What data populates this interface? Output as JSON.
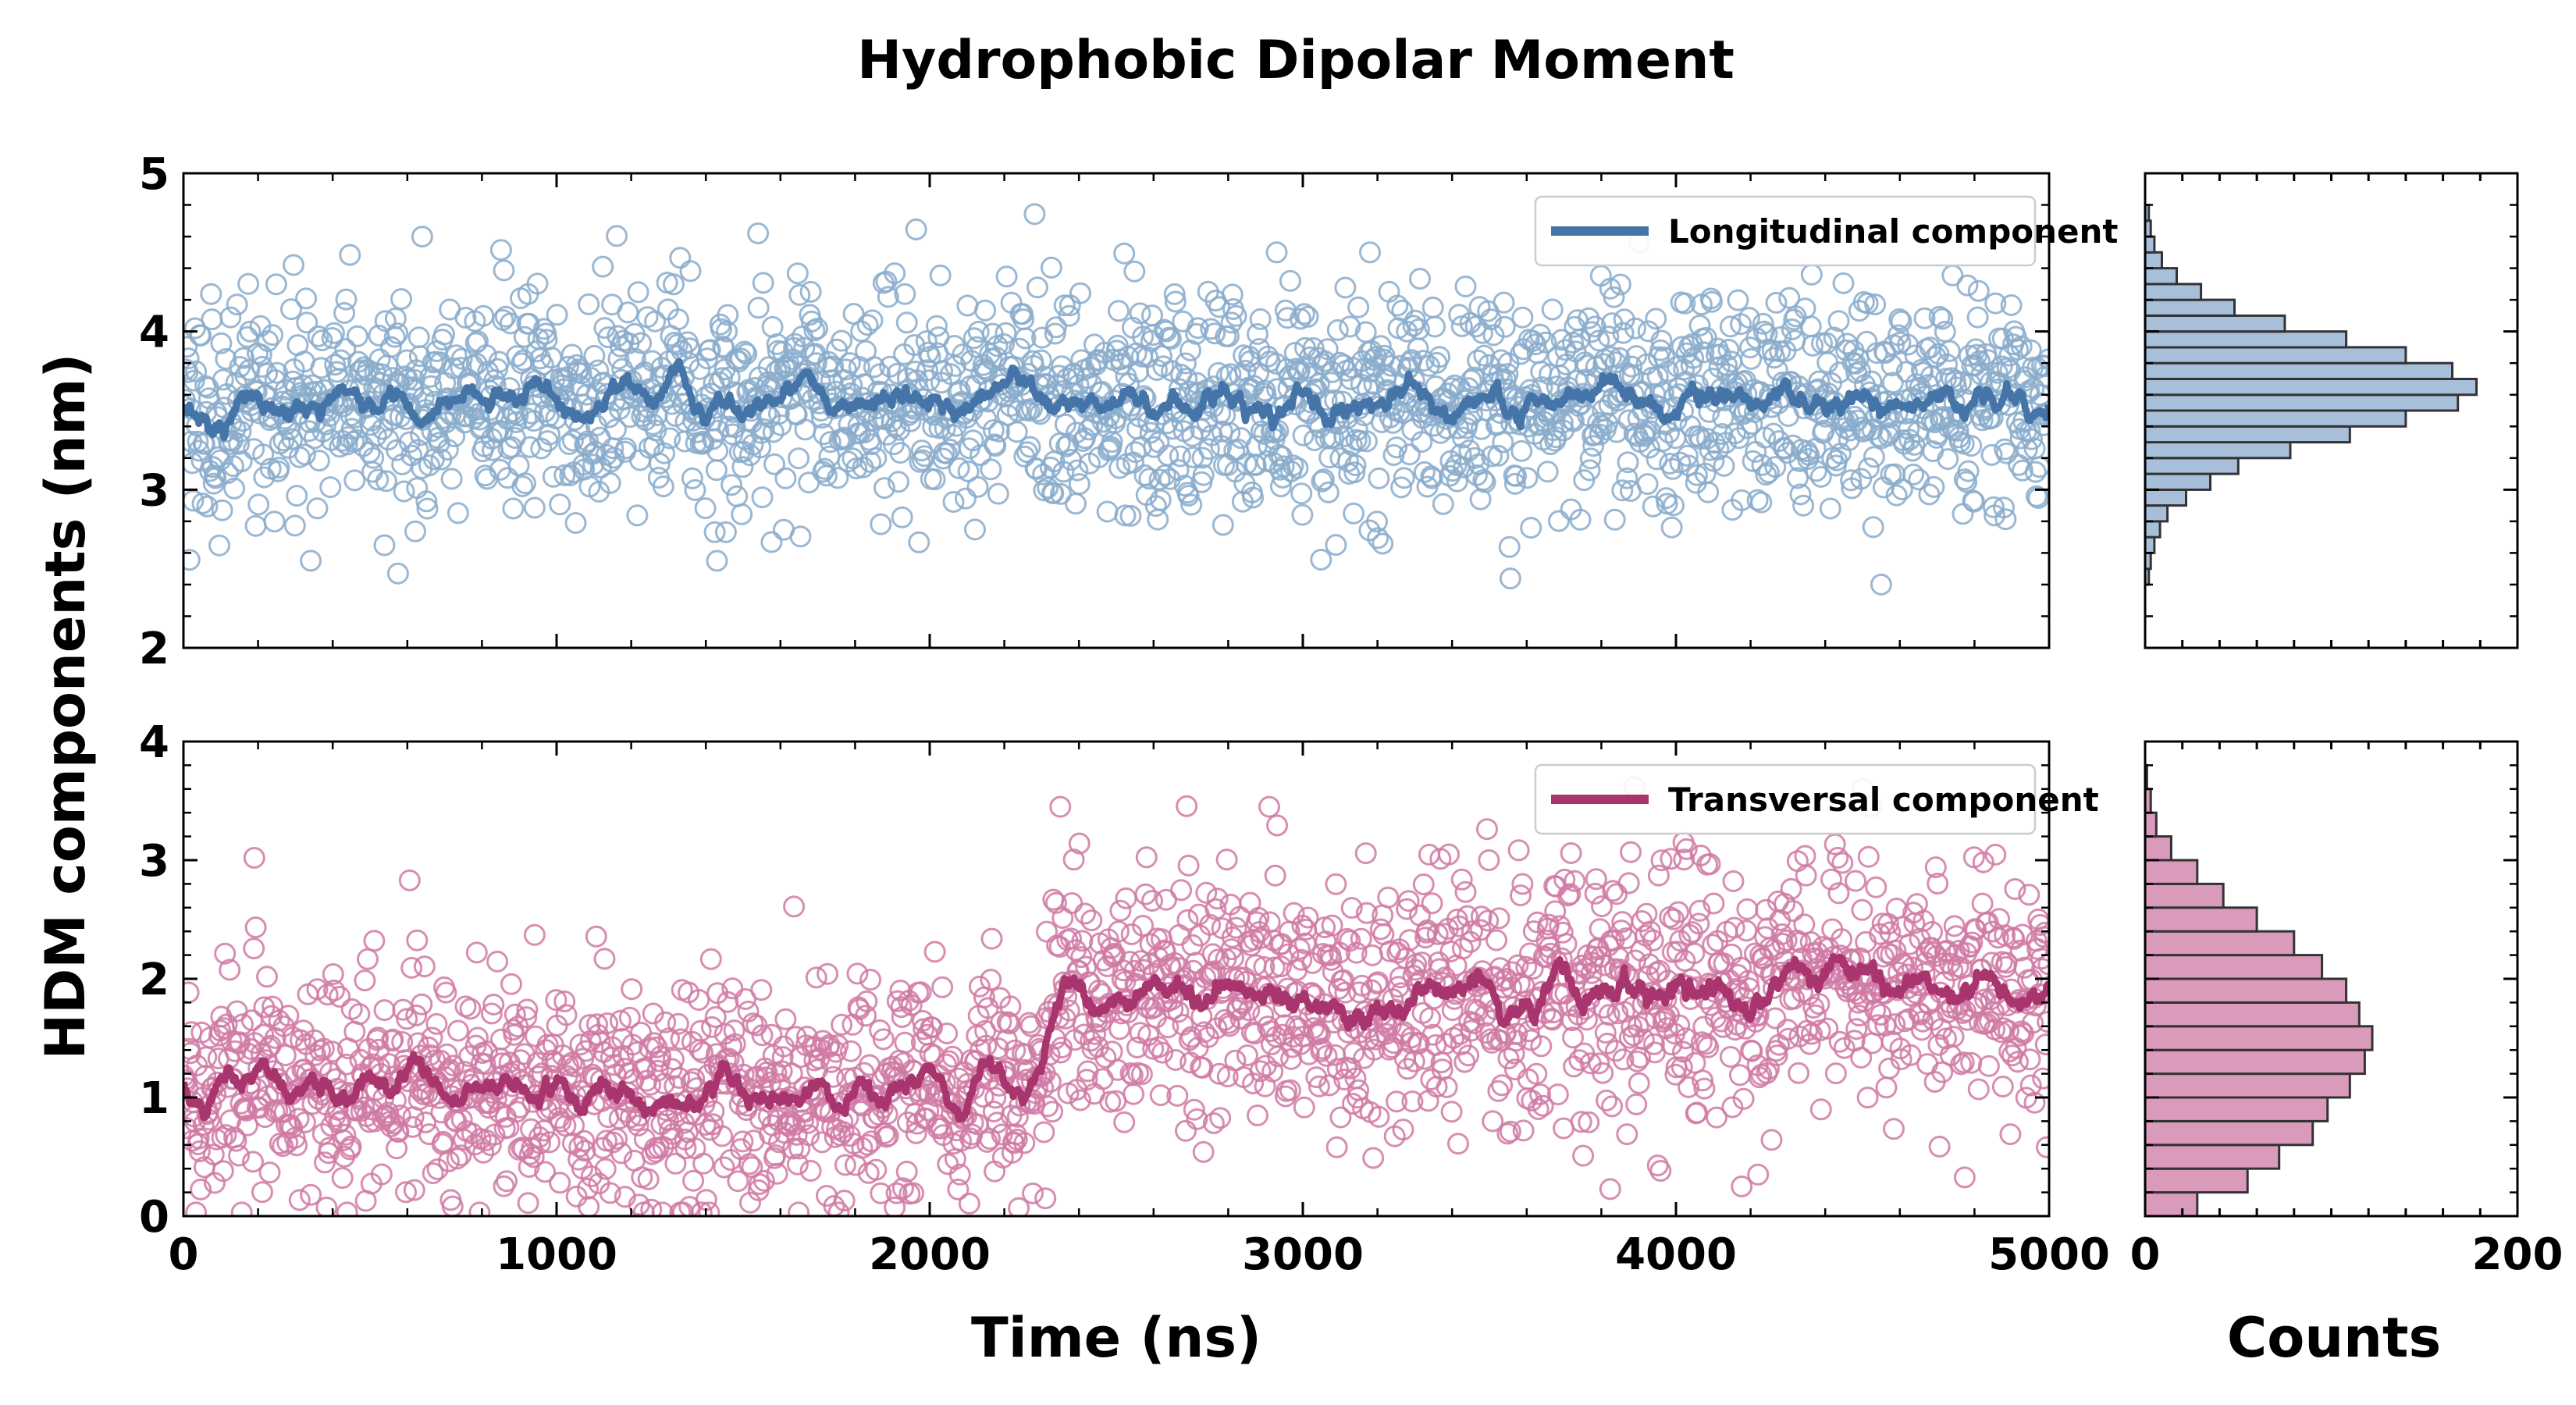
{
  "chart_data": {
    "title": "Hydrophobic Dipolar Moment",
    "ylabel": "HDM components (nm)",
    "panels": [
      {
        "id": "longitudinal",
        "type": "scatter",
        "xlim": [
          0,
          5000
        ],
        "ylim": [
          2,
          5
        ],
        "yticks": [
          "2",
          "3",
          "4",
          "5"
        ],
        "xticks": [
          "0",
          "1000",
          "2000",
          "3000",
          "4000",
          "5000"
        ],
        "show_xtick_labels": false,
        "legend": "Longitudinal component",
        "legend_position": "top-right",
        "color": "#4575a8",
        "marker_color": "#8aaccb",
        "n_points": 2000,
        "series_segments": [
          {
            "x_start": 0,
            "x_end": 5000,
            "mean": 3.55,
            "std": 0.34
          }
        ],
        "moving_average_range": [
          3.2,
          3.9
        ],
        "outlier_examples": [
          {
            "x": 295,
            "y": 4.42
          },
          {
            "x": 640,
            "y": 4.6
          },
          {
            "x": 1540,
            "y": 4.62
          },
          {
            "x": 2930,
            "y": 4.5
          },
          {
            "x": 3180,
            "y": 4.5
          },
          {
            "x": 575,
            "y": 2.47
          },
          {
            "x": 1430,
            "y": 2.55
          },
          {
            "x": 4550,
            "y": 2.4
          }
        ]
      },
      {
        "id": "transversal",
        "type": "scatter",
        "xlim": [
          0,
          5000
        ],
        "ylim": [
          0,
          4
        ],
        "yticks": [
          "0",
          "1",
          "2",
          "3",
          "4"
        ],
        "xticks": [
          "0",
          "1000",
          "2000",
          "3000",
          "4000",
          "5000"
        ],
        "show_xtick_labels": true,
        "xlabel": "Time (ns)",
        "legend": "Transversal component",
        "legend_position": "top-right",
        "color": "#a8356e",
        "marker_color": "#d07aa4",
        "n_points": 2000,
        "series_segments": [
          {
            "x_start": 0,
            "x_end": 2330,
            "mean": 1.05,
            "std": 0.48
          },
          {
            "x_start": 2330,
            "x_end": 5000,
            "mean": 1.85,
            "std": 0.55
          }
        ],
        "moving_average_range": [
          0.5,
          2.5
        ],
        "outlier_examples": [
          {
            "x": 190,
            "y": 3.02
          },
          {
            "x": 2350,
            "y": 3.45
          },
          {
            "x": 2910,
            "y": 3.45
          },
          {
            "x": 4020,
            "y": 3.15
          },
          {
            "x": 2310,
            "y": 0.15
          },
          {
            "x": 4220,
            "y": 0.35
          }
        ]
      }
    ],
    "histograms": [
      {
        "for": "longitudinal",
        "type": "bar",
        "orientation": "horizontal",
        "xlim": [
          0,
          200
        ],
        "bin_centers": [
          2.45,
          2.55,
          2.65,
          2.75,
          2.85,
          2.95,
          3.05,
          3.15,
          3.25,
          3.35,
          3.45,
          3.55,
          3.65,
          3.75,
          3.85,
          3.95,
          4.05,
          4.15,
          4.25,
          4.35,
          4.45,
          4.55,
          4.65,
          4.75
        ],
        "counts": [
          2,
          3,
          5,
          8,
          12,
          22,
          35,
          50,
          78,
          110,
          140,
          168,
          178,
          165,
          140,
          108,
          75,
          48,
          30,
          17,
          9,
          5,
          3,
          2
        ],
        "color": "#a7bfd9"
      },
      {
        "for": "transversal",
        "type": "bar",
        "orientation": "horizontal",
        "xlim": [
          0,
          200
        ],
        "xlabel": "Counts",
        "xticks": [
          "0",
          "200"
        ],
        "bin_centers": [
          0.1,
          0.3,
          0.5,
          0.7,
          0.9,
          1.1,
          1.3,
          1.5,
          1.7,
          1.9,
          2.1,
          2.3,
          2.5,
          2.7,
          2.9,
          3.1,
          3.3,
          3.5,
          3.7
        ],
        "counts": [
          28,
          55,
          72,
          90,
          98,
          110,
          118,
          122,
          115,
          108,
          95,
          80,
          60,
          42,
          28,
          14,
          6,
          3,
          1
        ],
        "color": "#d99abb"
      }
    ]
  }
}
